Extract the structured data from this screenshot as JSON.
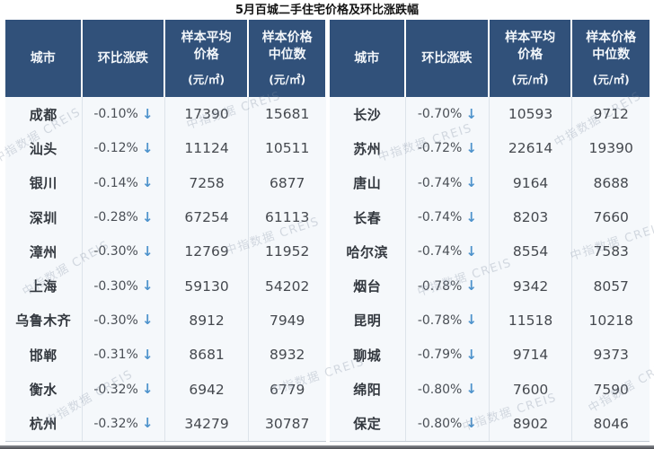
{
  "chart_data": {
    "type": "table",
    "title": "5月百城二手住宅价格及环比涨跌幅",
    "watermark": "中指数据 CREIS",
    "direction_glyph": "↓",
    "header": {
      "city": "城市",
      "mom": "环比涨跌",
      "avg": "样本平均\n价格",
      "median": "样本价格\n中位数",
      "unit": "(元/㎡)"
    },
    "tables": [
      {
        "rows": [
          {
            "city": "成都",
            "mom": "-0.10%",
            "avg": 17390,
            "median": 15681
          },
          {
            "city": "汕头",
            "mom": "-0.12%",
            "avg": 11124,
            "median": 10511
          },
          {
            "city": "银川",
            "mom": "-0.14%",
            "avg": 7258,
            "median": 6877
          },
          {
            "city": "深圳",
            "mom": "-0.28%",
            "avg": 67254,
            "median": 61113
          },
          {
            "city": "漳州",
            "mom": "-0.30%",
            "avg": 12769,
            "median": 11952
          },
          {
            "city": "上海",
            "mom": "-0.30%",
            "avg": 59130,
            "median": 54202
          },
          {
            "city": "乌鲁木齐",
            "mom": "-0.30%",
            "avg": 8912,
            "median": 7949
          },
          {
            "city": "邯郸",
            "mom": "-0.31%",
            "avg": 8681,
            "median": 8932
          },
          {
            "city": "衡水",
            "mom": "-0.32%",
            "avg": 6942,
            "median": 6779
          },
          {
            "city": "杭州",
            "mom": "-0.32%",
            "avg": 34279,
            "median": 30787
          }
        ]
      },
      {
        "rows": [
          {
            "city": "长沙",
            "mom": "-0.70%",
            "avg": 10593,
            "median": 9712
          },
          {
            "city": "苏州",
            "mom": "-0.72%",
            "avg": 22614,
            "median": 19390
          },
          {
            "city": "唐山",
            "mom": "-0.74%",
            "avg": 9164,
            "median": 8688
          },
          {
            "city": "长春",
            "mom": "-0.74%",
            "avg": 8203,
            "median": 7660
          },
          {
            "city": "哈尔滨",
            "mom": "-0.74%",
            "avg": 8554,
            "median": 7583
          },
          {
            "city": "烟台",
            "mom": "-0.78%",
            "avg": 9342,
            "median": 8057
          },
          {
            "city": "昆明",
            "mom": "-0.78%",
            "avg": 11518,
            "median": 10218
          },
          {
            "city": "聊城",
            "mom": "-0.79%",
            "avg": 9714,
            "median": 9373
          },
          {
            "city": "绵阳",
            "mom": "-0.80%",
            "avg": 7600,
            "median": 7590
          },
          {
            "city": "保定",
            "mom": "-0.80%",
            "avg": 8902,
            "median": 8046
          }
        ]
      }
    ]
  },
  "colors": {
    "header_bg": "#31517a",
    "row_bg": "#f5f8fb",
    "arrow_blue": "#4e93cc",
    "grid_line": "#dde3ea"
  }
}
